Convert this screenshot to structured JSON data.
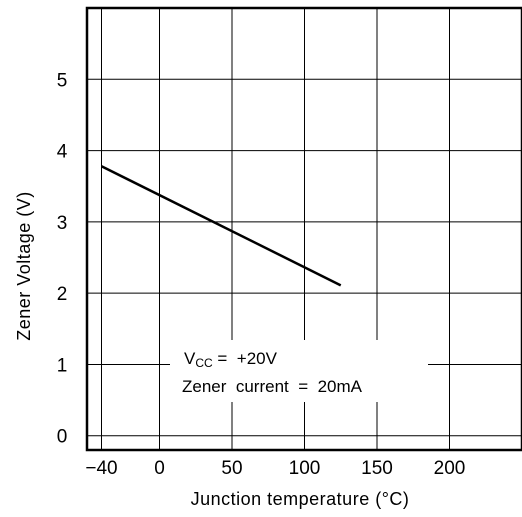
{
  "chart_data": {
    "type": "line",
    "xlabel": "Junction temperature (°C)",
    "ylabel": "Zener Voltage (V)",
    "x_ticks": [
      "−40",
      "0",
      "50",
      "100",
      "150",
      "200"
    ],
    "y_ticks": [
      "0",
      "1",
      "2",
      "3",
      "4",
      "5"
    ],
    "xlim": [
      -50,
      250
    ],
    "ylim": [
      -0.2,
      6.0
    ],
    "grid": true,
    "series": [
      {
        "x": [
          -40,
          125
        ],
        "y": [
          3.78,
          2.11
        ]
      }
    ],
    "annotations": [
      {
        "main": "V",
        "sub": "CC",
        "rest": " =  +20V"
      },
      {
        "text": "Zener  current  =  20mA"
      }
    ]
  }
}
